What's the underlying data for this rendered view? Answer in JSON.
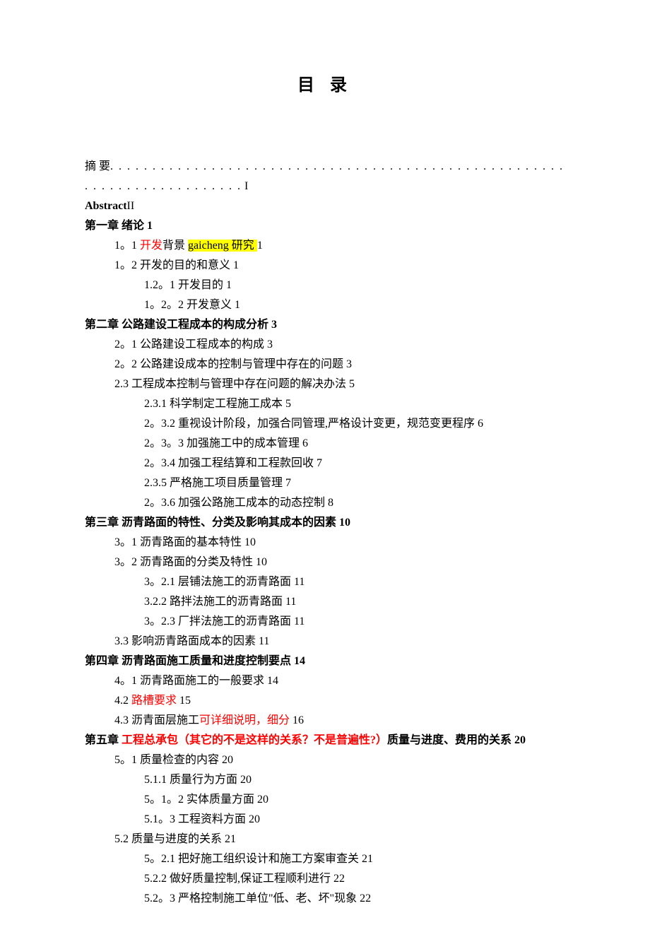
{
  "title": "目  录",
  "abstract_line_prefix": "摘   要",
  "abstract_dots": ". . . . . . . . . . . . . . . . . . . . . . . . . . . . . . . . . . . . . . . . . . . . . . . . . . . . . . . . . . . . . . . . . . . . . . . . .",
  "abstract_page": " I",
  "abstract2_label": "Abstract",
  "abstract2_page": "II",
  "ch1": {
    "heading": "第一章  绪论 1",
    "s1_num": "1。1   ",
    "s1_red": "开发",
    "s1_black1": "背景 ",
    "s1_hl": "gaicheng 研究 ",
    "s1_page": "1",
    "s2": "1。2   开发的目的和意义 1",
    "s21": "1.2。1   开发目的 1",
    "s22": "1。2。2   开发意义 1"
  },
  "ch2": {
    "heading": "第二章  公路建设工程成本的构成分析 3",
    "s1": "2。1   公路建设工程成本的构成 3",
    "s2": "2。2   公路建设成本的控制与管理中存在的问题 3",
    "s3": "2.3   工程成本控制与管理中存在问题的解决办法 5",
    "s31": "2.3.1   科学制定工程施工成本 5",
    "s32": "2。3.2   重视设计阶段，加强合同管理,严格设计变更，规范变更程序 6",
    "s33": "2。3。3   加强施工中的成本管理 6",
    "s34": "2。3.4   加强工程结算和工程款回收 7",
    "s35": "2.3.5   严格施工项目质量管理 7",
    "s36": "2。3.6   加强公路施工成本的动态控制 8"
  },
  "ch3": {
    "heading": "第三章  沥青路面的特性、分类及影响其成本的因素 10",
    "s1": "3。1   沥青路面的基本特性 10",
    "s2": "3。2   沥青路面的分类及特性 10",
    "s21": "3。2.1   层铺法施工的沥青路面 11",
    "s22": "3.2.2   路拌法施工的沥青路面 11",
    "s23": "3。2.3   厂拌法施工的沥青路面 11",
    "s3": "3.3   影响沥青路面成本的因素 11"
  },
  "ch4": {
    "heading": "第四章  沥青路面施工质量和进度控制要点 14",
    "s1": "4。1   沥青路面施工的一般要求 14",
    "s2_num": "4.2   ",
    "s2_red": "路槽要求 ",
    "s2_page": "15",
    "s3_pre": "4.3   沥青面层施工",
    "s3_red": "可详细说明，细分 ",
    "s3_page": "16"
  },
  "ch5": {
    "h_pre": "第五章  ",
    "h_red": "工程总承包（其它的不是这样的关系？不是普遍性?）",
    "h_post": "质量与进度、费用的关系 20",
    "s1": "5。1   质量检查的内容 20",
    "s11": "5.1.1   质量行为方面 20",
    "s12": "5。1。2   实体质量方面 20",
    "s13": "5.1。3   工程资料方面 20",
    "s2": "5.2   质量与进度的关系 21",
    "s21": "5。2.1   把好施工组织设计和施工方案审查关 21",
    "s22": "5.2.2   做好质量控制,保证工程顺利进行 22",
    "s23": "5.2。3   严格控制施工单位\"低、老、坏\"现象 22"
  },
  "colors": {
    "text": "#000000",
    "red": "#ff0000",
    "highlight_bg": "#ffff00",
    "page_bg": "#ffffff"
  },
  "typography": {
    "body_font": "SimSun / 宋体",
    "body_size_pt": 12,
    "title_size_pt": 18,
    "title_weight": "bold",
    "line_height": 1.75
  }
}
